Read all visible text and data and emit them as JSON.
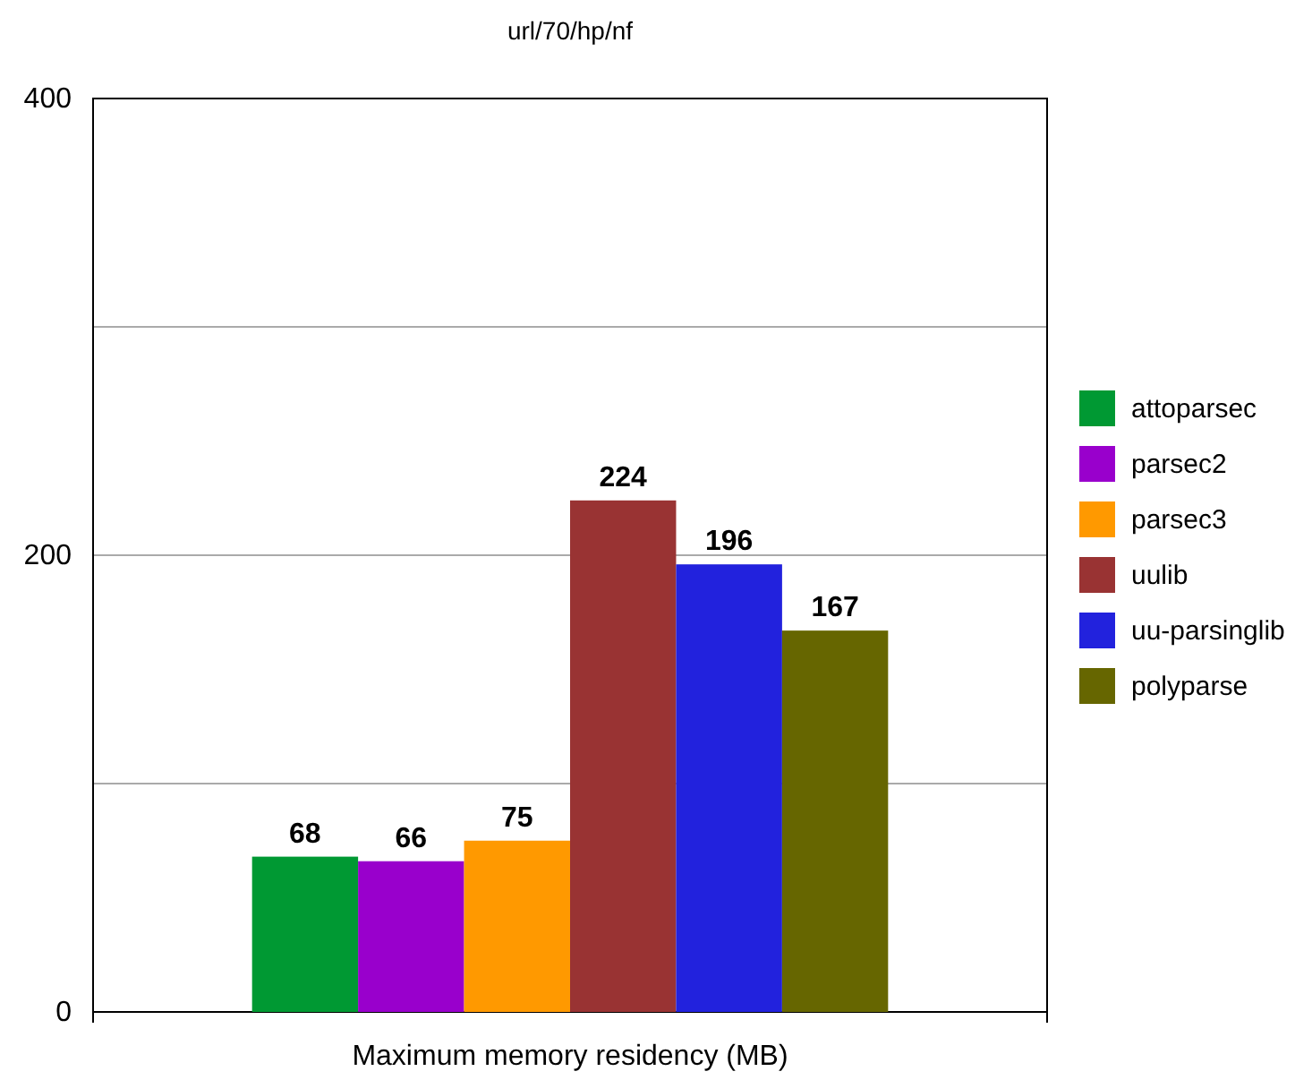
{
  "chart_data": {
    "type": "bar",
    "title": "url/70/hp/nf",
    "categories": [
      "Maximum memory residency (MB)"
    ],
    "series": [
      {
        "name": "attoparsec",
        "color": "#009933",
        "values": [
          68
        ]
      },
      {
        "name": "parsec2",
        "color": "#9900cc",
        "values": [
          66
        ]
      },
      {
        "name": "parsec3",
        "color": "#ff9900",
        "values": [
          75
        ]
      },
      {
        "name": "uulib",
        "color": "#993333",
        "values": [
          224
        ]
      },
      {
        "name": "uu-parsinglib",
        "color": "#2222dd",
        "values": [
          196
        ]
      },
      {
        "name": "polyparse",
        "color": "#666600",
        "values": [
          167
        ]
      }
    ],
    "ylim": [
      0,
      400
    ],
    "yticks": [
      0,
      {
        "value": 100,
        "label": null
      },
      200,
      {
        "value": 300,
        "label": null
      },
      400
    ],
    "grid": "y",
    "legend": "right",
    "data_labels": true
  }
}
